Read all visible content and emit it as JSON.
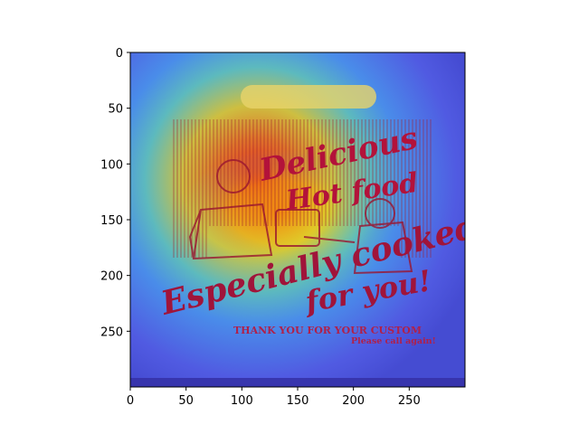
{
  "image": {
    "texts": {
      "headline_1": "Delicious",
      "headline_2": "Hot food",
      "slogan_1": "Especially cooked",
      "slogan_2": "for you!",
      "thanks": "THANK YOU FOR YOUR CUSTOM",
      "call": "Please call again!"
    },
    "colors": {
      "overlay_cool": "#3b45e6",
      "overlay_warm": "#ff2a00",
      "print": "#b3123a"
    }
  },
  "axes": {
    "x_ticks": [
      "0",
      "50",
      "100",
      "150",
      "200",
      "250"
    ],
    "y_ticks": [
      "0",
      "50",
      "100",
      "150",
      "200",
      "250"
    ],
    "xlim": [
      0,
      300
    ],
    "ylim": [
      300,
      0
    ]
  }
}
